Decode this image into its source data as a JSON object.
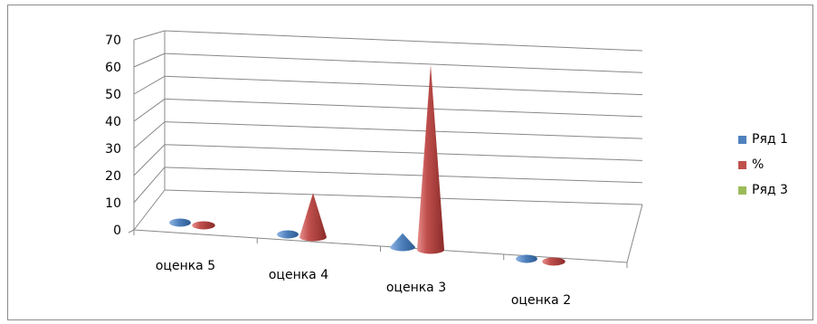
{
  "chart_data": {
    "type": "bar",
    "mark": "cone-3d",
    "title": "",
    "xlabel": "",
    "ylabel": "",
    "ylim": [
      0,
      70
    ],
    "y_ticks": [
      "0",
      "10",
      "20",
      "30",
      "40",
      "50",
      "60",
      "70"
    ],
    "categories": [
      "оценка 5",
      "оценка 4",
      "оценка 3",
      "оценка 2"
    ],
    "series": [
      {
        "name": "Ряд 1",
        "color": "#4f81bd",
        "values": [
          1,
          1,
          5,
          1
        ]
      },
      {
        "name": "%",
        "color": "#c0504d",
        "values": [
          1,
          16,
          67,
          0
        ]
      },
      {
        "name": "Ряд 3",
        "color": "#9bbb59",
        "values": [
          0,
          0,
          0,
          0
        ]
      }
    ],
    "grid": true,
    "legend_position": "right"
  }
}
